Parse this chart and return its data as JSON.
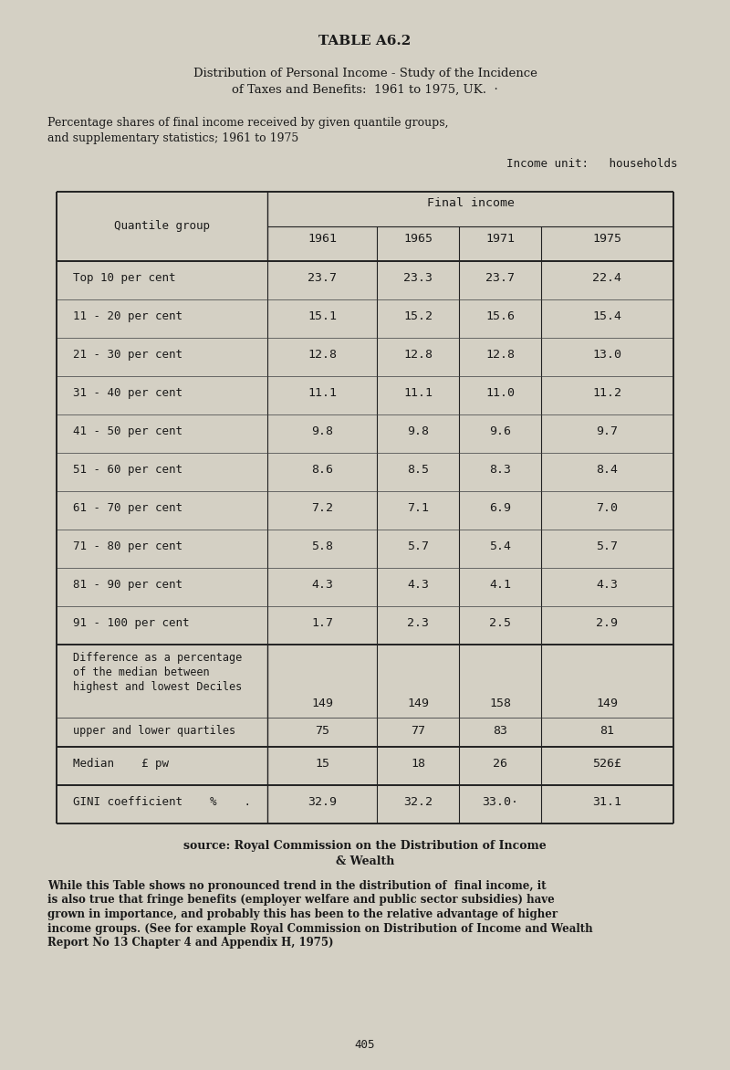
{
  "title_main": "TABLE A6.2",
  "title_sub1": "Distribution of Personal Income - Study of the Incidence",
  "title_sub2": "of Taxes and Benefits:  1961 to 1975, UK.  ·",
  "subtitle1": "Percentage shares of final income received by given quantile groups,",
  "subtitle2": "and supplementary statistics; 1961 to 1975",
  "income_unit": "Income unit:   households",
  "col_header_main": "Final income",
  "col_header_left": "Quantile group",
  "years": [
    "1961",
    "1965",
    "1971",
    "1975"
  ],
  "quantile_rows": [
    {
      "label": "Top 10 per cent",
      "values": [
        "23.7",
        "23.3",
        "23.7",
        "22.4"
      ]
    },
    {
      "label": "11 - 20 per cent",
      "values": [
        "15.1",
        "15.2",
        "15.6",
        "15.4"
      ]
    },
    {
      "label": "21 - 30 per cent",
      "values": [
        "12.8",
        "12.8",
        "12.8",
        "13.0"
      ]
    },
    {
      "label": "31 - 40 per cent",
      "values": [
        "11.1",
        "11.1",
        "11.0",
        "11.2"
      ]
    },
    {
      "label": "41 - 50 per cent",
      "values": [
        "9.8",
        "9.8",
        "9.6",
        "9.7"
      ]
    },
    {
      "label": "51 - 60 per cent",
      "values": [
        "8.6",
        "8.5",
        "8.3",
        "8.4"
      ]
    },
    {
      "label": "61 - 70 per cent",
      "values": [
        "7.2",
        "7.1",
        "6.9",
        "7.0"
      ]
    },
    {
      "label": "71 - 80 per cent",
      "values": [
        "5.8",
        "5.7",
        "5.4",
        "5.7"
      ]
    },
    {
      "label": "81 - 90 per cent",
      "values": [
        "4.3",
        "4.3",
        "4.1",
        "4.3"
      ]
    },
    {
      "label": "91 - 100 per cent",
      "values": [
        "1.7",
        "2.3",
        "2.5",
        "2.9"
      ]
    }
  ],
  "diff_label1": "Difference as a percentage",
  "diff_label2": "of the median between",
  "diff_label3": "highest and lowest Deciles",
  "diff_values": [
    "149",
    "149",
    "158",
    "149"
  ],
  "quartile_label": "upper and lower quartiles",
  "quartile_values": [
    "75",
    "77",
    "83",
    "81"
  ],
  "median_label": "Median    £ pw",
  "median_values": [
    "15",
    "18",
    "26",
    "526£"
  ],
  "gini_label": "GINI coefficient    %    .",
  "gini_values": [
    "32.9",
    "32.2",
    "33.0·",
    "31.1"
  ],
  "source_line1": "source: Royal Commission on the Distribution of Income",
  "source_line2": "& Wealth",
  "footnote_lines": [
    "While this Table shows no pronounced trend in the distribution of  final income, it",
    "is also true that fringe benefits (employer welfare and public sector subsidies) have",
    "grown in importance, and probably this has been to the relative advantage of higher",
    "income groups. (See for example Royal Commission on Distribution of Income and Wealth",
    "Report No 13 Chapter 4 and Appendix H, 1975)"
  ],
  "page_number": "405",
  "bg_color": "#d4d0c4",
  "text_color": "#1a1a1a"
}
